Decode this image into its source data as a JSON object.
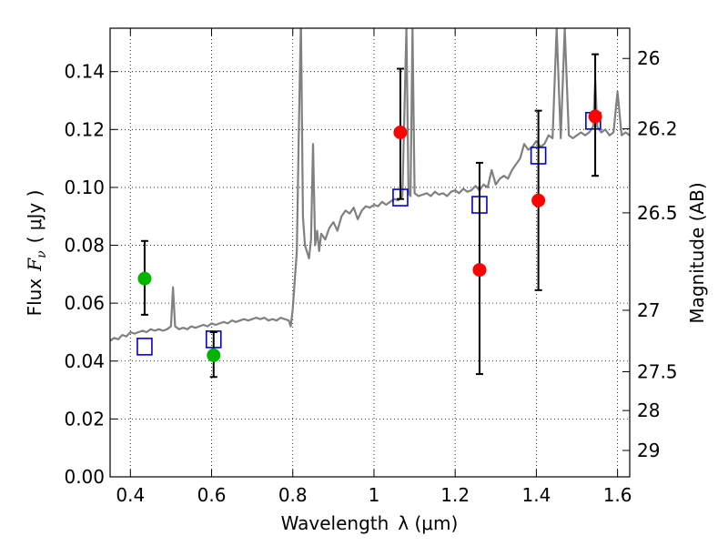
{
  "chart_data": {
    "type": "scatter",
    "xlabel": "Wavelength λ (μm)",
    "ylabel": "Flux F_ν ( μJy )",
    "ylabel_text": "Flux",
    "ylabel_symbol": "F",
    "ylabel_sub": "ν",
    "ylabel_unit": "( μJy )",
    "xlabel_text": "Wavelength",
    "xlabel_unit": "λ (μm)",
    "y2label": "Magnitude (AB)",
    "xlim": [
      0.35,
      1.63
    ],
    "ylim": [
      0.0,
      0.155
    ],
    "grid": true,
    "x_ticks": [
      {
        "value": 0.4,
        "label": "0.4"
      },
      {
        "value": 0.6,
        "label": "0.6"
      },
      {
        "value": 0.8,
        "label": "0.8"
      },
      {
        "value": 1.0,
        "label": "1"
      },
      {
        "value": 1.2,
        "label": "1.2"
      },
      {
        "value": 1.4,
        "label": "1.4"
      },
      {
        "value": 1.6,
        "label": "1.6"
      }
    ],
    "y_ticks": [
      {
        "value": 0.0,
        "label": "0.00"
      },
      {
        "value": 0.02,
        "label": "0.02"
      },
      {
        "value": 0.04,
        "label": "0.04"
      },
      {
        "value": 0.06,
        "label": "0.06"
      },
      {
        "value": 0.08,
        "label": "0.08"
      },
      {
        "value": 0.1,
        "label": "0.10"
      },
      {
        "value": 0.12,
        "label": "0.12"
      },
      {
        "value": 0.14,
        "label": "0.14"
      }
    ],
    "y2_ticks": [
      {
        "mag": 26,
        "label": "26"
      },
      {
        "mag": 26.2,
        "label": "26.2"
      },
      {
        "mag": 26.5,
        "label": "26.5"
      },
      {
        "mag": 27,
        "label": "27"
      },
      {
        "mag": 27.5,
        "label": "27.5"
      },
      {
        "mag": 28,
        "label": "28"
      },
      {
        "mag": 29,
        "label": "29"
      }
    ],
    "colors": {
      "model": "#808080",
      "observed_green": "#00b400",
      "observed_red": "#ff0000",
      "model_box": "#0000cc",
      "errorbar": "#000000"
    },
    "series": [
      {
        "kind": "model-spectrum",
        "points": [
          [
            0.35,
            0.047
          ],
          [
            0.36,
            0.048
          ],
          [
            0.37,
            0.0475
          ],
          [
            0.38,
            0.049
          ],
          [
            0.39,
            0.0485
          ],
          [
            0.4,
            0.05
          ],
          [
            0.41,
            0.0495
          ],
          [
            0.42,
            0.05
          ],
          [
            0.43,
            0.0505
          ],
          [
            0.44,
            0.05
          ],
          [
            0.45,
            0.051
          ],
          [
            0.46,
            0.0505
          ],
          [
            0.47,
            0.051
          ],
          [
            0.48,
            0.0505
          ],
          [
            0.49,
            0.051
          ],
          [
            0.5,
            0.052
          ],
          [
            0.505,
            0.0655
          ],
          [
            0.51,
            0.052
          ],
          [
            0.52,
            0.051
          ],
          [
            0.53,
            0.0515
          ],
          [
            0.54,
            0.051
          ],
          [
            0.55,
            0.052
          ],
          [
            0.56,
            0.0515
          ],
          [
            0.57,
            0.052
          ],
          [
            0.58,
            0.0525
          ],
          [
            0.59,
            0.052
          ],
          [
            0.6,
            0.053
          ],
          [
            0.61,
            0.0525
          ],
          [
            0.62,
            0.053
          ],
          [
            0.63,
            0.0535
          ],
          [
            0.64,
            0.053
          ],
          [
            0.65,
            0.054
          ],
          [
            0.66,
            0.0535
          ],
          [
            0.67,
            0.054
          ],
          [
            0.68,
            0.0545
          ],
          [
            0.69,
            0.054
          ],
          [
            0.7,
            0.0545
          ],
          [
            0.71,
            0.055
          ],
          [
            0.72,
            0.0545
          ],
          [
            0.73,
            0.055
          ],
          [
            0.74,
            0.054
          ],
          [
            0.75,
            0.0545
          ],
          [
            0.76,
            0.054
          ],
          [
            0.77,
            0.055
          ],
          [
            0.78,
            0.0545
          ],
          [
            0.79,
            0.054
          ],
          [
            0.795,
            0.052
          ],
          [
            0.8,
            0.058
          ],
          [
            0.81,
            0.078
          ],
          [
            0.815,
            0.12
          ],
          [
            0.82,
            0.158
          ],
          [
            0.825,
            0.09
          ],
          [
            0.83,
            0.08
          ],
          [
            0.84,
            0.0755
          ],
          [
            0.845,
            0.082
          ],
          [
            0.85,
            0.115
          ],
          [
            0.855,
            0.08
          ],
          [
            0.86,
            0.085
          ],
          [
            0.865,
            0.078
          ],
          [
            0.87,
            0.084
          ],
          [
            0.88,
            0.082
          ],
          [
            0.89,
            0.086
          ],
          [
            0.9,
            0.088
          ],
          [
            0.91,
            0.085
          ],
          [
            0.92,
            0.09
          ],
          [
            0.93,
            0.092
          ],
          [
            0.94,
            0.091
          ],
          [
            0.95,
            0.093
          ],
          [
            0.96,
            0.089
          ],
          [
            0.97,
            0.092
          ],
          [
            0.98,
            0.0935
          ],
          [
            0.99,
            0.093
          ],
          [
            1.0,
            0.094
          ],
          [
            1.01,
            0.0935
          ],
          [
            1.02,
            0.095
          ],
          [
            1.03,
            0.094
          ],
          [
            1.04,
            0.095
          ],
          [
            1.05,
            0.096
          ],
          [
            1.06,
            0.0955
          ],
          [
            1.07,
            0.097
          ],
          [
            1.08,
            0.155
          ],
          [
            1.085,
            0.098
          ],
          [
            1.09,
            0.097
          ],
          [
            1.095,
            0.155
          ],
          [
            1.1,
            0.098
          ],
          [
            1.11,
            0.097
          ],
          [
            1.12,
            0.0975
          ],
          [
            1.13,
            0.098
          ],
          [
            1.14,
            0.097
          ],
          [
            1.15,
            0.0985
          ],
          [
            1.16,
            0.0975
          ],
          [
            1.17,
            0.098
          ],
          [
            1.18,
            0.097
          ],
          [
            1.19,
            0.0985
          ],
          [
            1.2,
            0.099
          ],
          [
            1.21,
            0.098
          ],
          [
            1.22,
            0.0995
          ],
          [
            1.23,
            0.0985
          ],
          [
            1.24,
            0.099
          ],
          [
            1.25,
            0.1005
          ],
          [
            1.26,
            0.099
          ],
          [
            1.27,
            0.101
          ],
          [
            1.28,
            0.1
          ],
          [
            1.29,
            0.106
          ],
          [
            1.3,
            0.101
          ],
          [
            1.31,
            0.103
          ],
          [
            1.32,
            0.104
          ],
          [
            1.33,
            0.103
          ],
          [
            1.34,
            0.106
          ],
          [
            1.35,
            0.108
          ],
          [
            1.36,
            0.11
          ],
          [
            1.37,
            0.115
          ],
          [
            1.38,
            0.113
          ],
          [
            1.39,
            0.114
          ],
          [
            1.4,
            0.116
          ],
          [
            1.41,
            0.114
          ],
          [
            1.42,
            0.115
          ],
          [
            1.43,
            0.118
          ],
          [
            1.44,
            0.117
          ],
          [
            1.45,
            0.155
          ],
          [
            1.46,
            0.117
          ],
          [
            1.47,
            0.155
          ],
          [
            1.48,
            0.118
          ],
          [
            1.49,
            0.117
          ],
          [
            1.5,
            0.118
          ],
          [
            1.51,
            0.119
          ],
          [
            1.52,
            0.118
          ],
          [
            1.53,
            0.119
          ],
          [
            1.54,
            0.121
          ],
          [
            1.545,
            0.137
          ],
          [
            1.55,
            0.121
          ],
          [
            1.56,
            0.119
          ],
          [
            1.57,
            0.12
          ],
          [
            1.58,
            0.118
          ],
          [
            1.59,
            0.119
          ],
          [
            1.6,
            0.133
          ],
          [
            1.61,
            0.118
          ],
          [
            1.62,
            0.119
          ],
          [
            1.63,
            0.118
          ]
        ]
      },
      {
        "kind": "observed",
        "color": "green",
        "points": [
          {
            "x": 0.435,
            "y": 0.0685,
            "err": [
              0.056,
              0.0815
            ]
          },
          {
            "x": 0.605,
            "y": 0.042,
            "err": [
              0.0345,
              0.05
            ]
          }
        ]
      },
      {
        "kind": "observed",
        "color": "red",
        "points": [
          {
            "x": 1.065,
            "y": 0.119,
            "err": [
              0.096,
              0.141
            ]
          },
          {
            "x": 1.26,
            "y": 0.0715,
            "err": [
              0.0355,
              0.1085
            ]
          },
          {
            "x": 1.405,
            "y": 0.0955,
            "err": [
              0.0645,
              0.1265
            ]
          },
          {
            "x": 1.545,
            "y": 0.1245,
            "err": [
              0.104,
              0.146
            ]
          }
        ]
      },
      {
        "kind": "model-photometry",
        "points": [
          {
            "x": 0.435,
            "y": 0.045
          },
          {
            "x": 0.605,
            "y": 0.0475
          },
          {
            "x": 1.065,
            "y": 0.0965
          },
          {
            "x": 1.26,
            "y": 0.094
          },
          {
            "x": 1.405,
            "y": 0.111
          },
          {
            "x": 1.54,
            "y": 0.123
          }
        ]
      }
    ]
  }
}
